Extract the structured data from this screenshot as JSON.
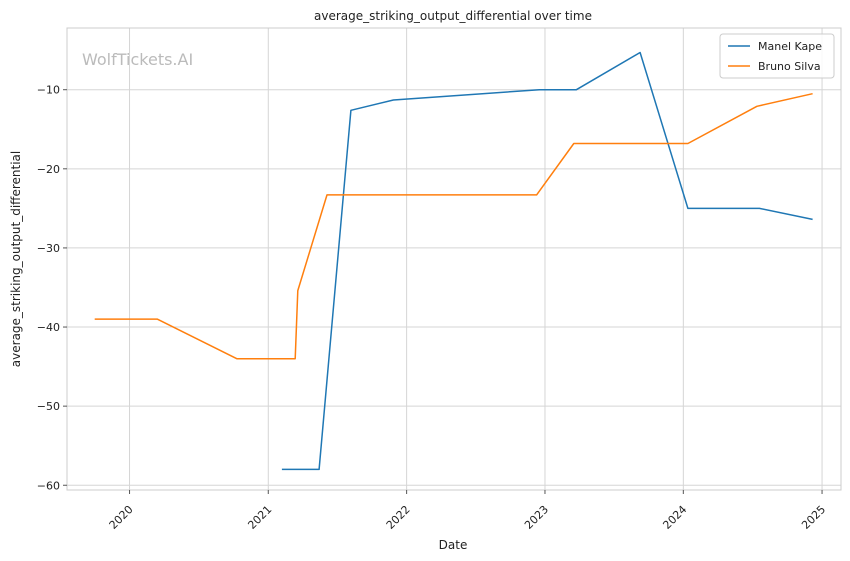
{
  "chart_data": {
    "type": "line",
    "title": "average_striking_output_differential over time",
    "xlabel": "Date",
    "ylabel": "average_striking_output_differential",
    "watermark": "WolfTickets.AI",
    "x_ticks": [
      "2020",
      "2021",
      "2022",
      "2023",
      "2024",
      "2025"
    ],
    "y_ticks": [
      -10,
      -20,
      -30,
      -40,
      -50,
      -60
    ],
    "xlim": [
      "2019-07-20",
      "2025-02-20"
    ],
    "ylim": [
      -60.6,
      -2.2
    ],
    "grid": true,
    "legend_position": "top-right",
    "series": [
      {
        "name": "Manel Kape",
        "color": "#1f77b4",
        "points": [
          {
            "x": "2021-02-06",
            "y": -58.0
          },
          {
            "x": "2021-05-15",
            "y": -58.0
          },
          {
            "x": "2021-08-07",
            "y": -12.6
          },
          {
            "x": "2021-11-27",
            "y": -11.3
          },
          {
            "x": "2022-12-17",
            "y": -10.0
          },
          {
            "x": "2023-03-25",
            "y": -10.0
          },
          {
            "x": "2023-09-09",
            "y": -5.3
          },
          {
            "x": "2024-01-13",
            "y": -25.0
          },
          {
            "x": "2024-07-20",
            "y": -25.0
          },
          {
            "x": "2024-12-07",
            "y": -26.4
          }
        ]
      },
      {
        "name": "Bruno Silva",
        "color": "#ff7f0e",
        "points": [
          {
            "x": "2019-10-01",
            "y": -39.0
          },
          {
            "x": "2020-03-14",
            "y": -39.0
          },
          {
            "x": "2020-10-10",
            "y": -44.0
          },
          {
            "x": "2021-03-13",
            "y": -44.0
          },
          {
            "x": "2021-03-20",
            "y": -35.4
          },
          {
            "x": "2021-06-05",
            "y": -23.3
          },
          {
            "x": "2022-12-10",
            "y": -23.3
          },
          {
            "x": "2023-03-18",
            "y": -16.8
          },
          {
            "x": "2024-01-13",
            "y": -16.8
          },
          {
            "x": "2024-07-13",
            "y": -12.1
          },
          {
            "x": "2024-12-07",
            "y": -10.5
          }
        ]
      }
    ]
  }
}
